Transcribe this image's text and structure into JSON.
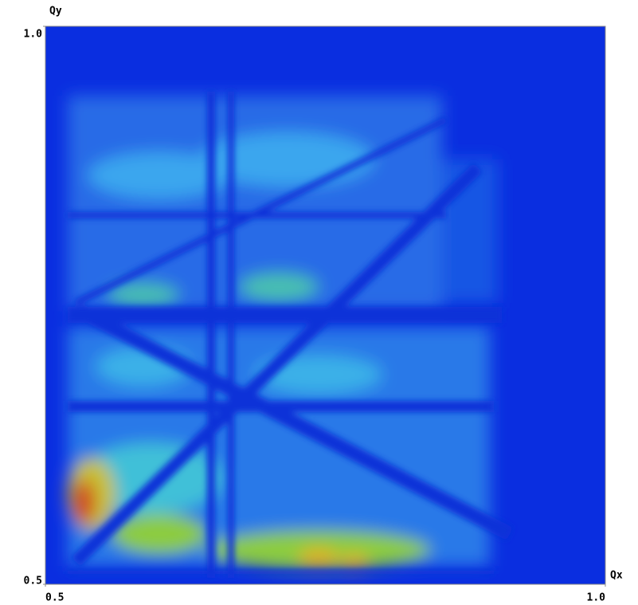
{
  "chart_data": {
    "type": "heatmap",
    "x_label": "Qx",
    "y_label": "Qy",
    "xlim": [
      0.5,
      1.0
    ],
    "ylim": [
      0.5,
      1.0
    ],
    "xticks": [
      0.5,
      {
        "value": 1.0,
        "label": "1.0"
      }
    ],
    "yticks": [
      0.5,
      {
        "value": 1.0,
        "label": "1.0"
      }
    ],
    "grid": false
  }
}
